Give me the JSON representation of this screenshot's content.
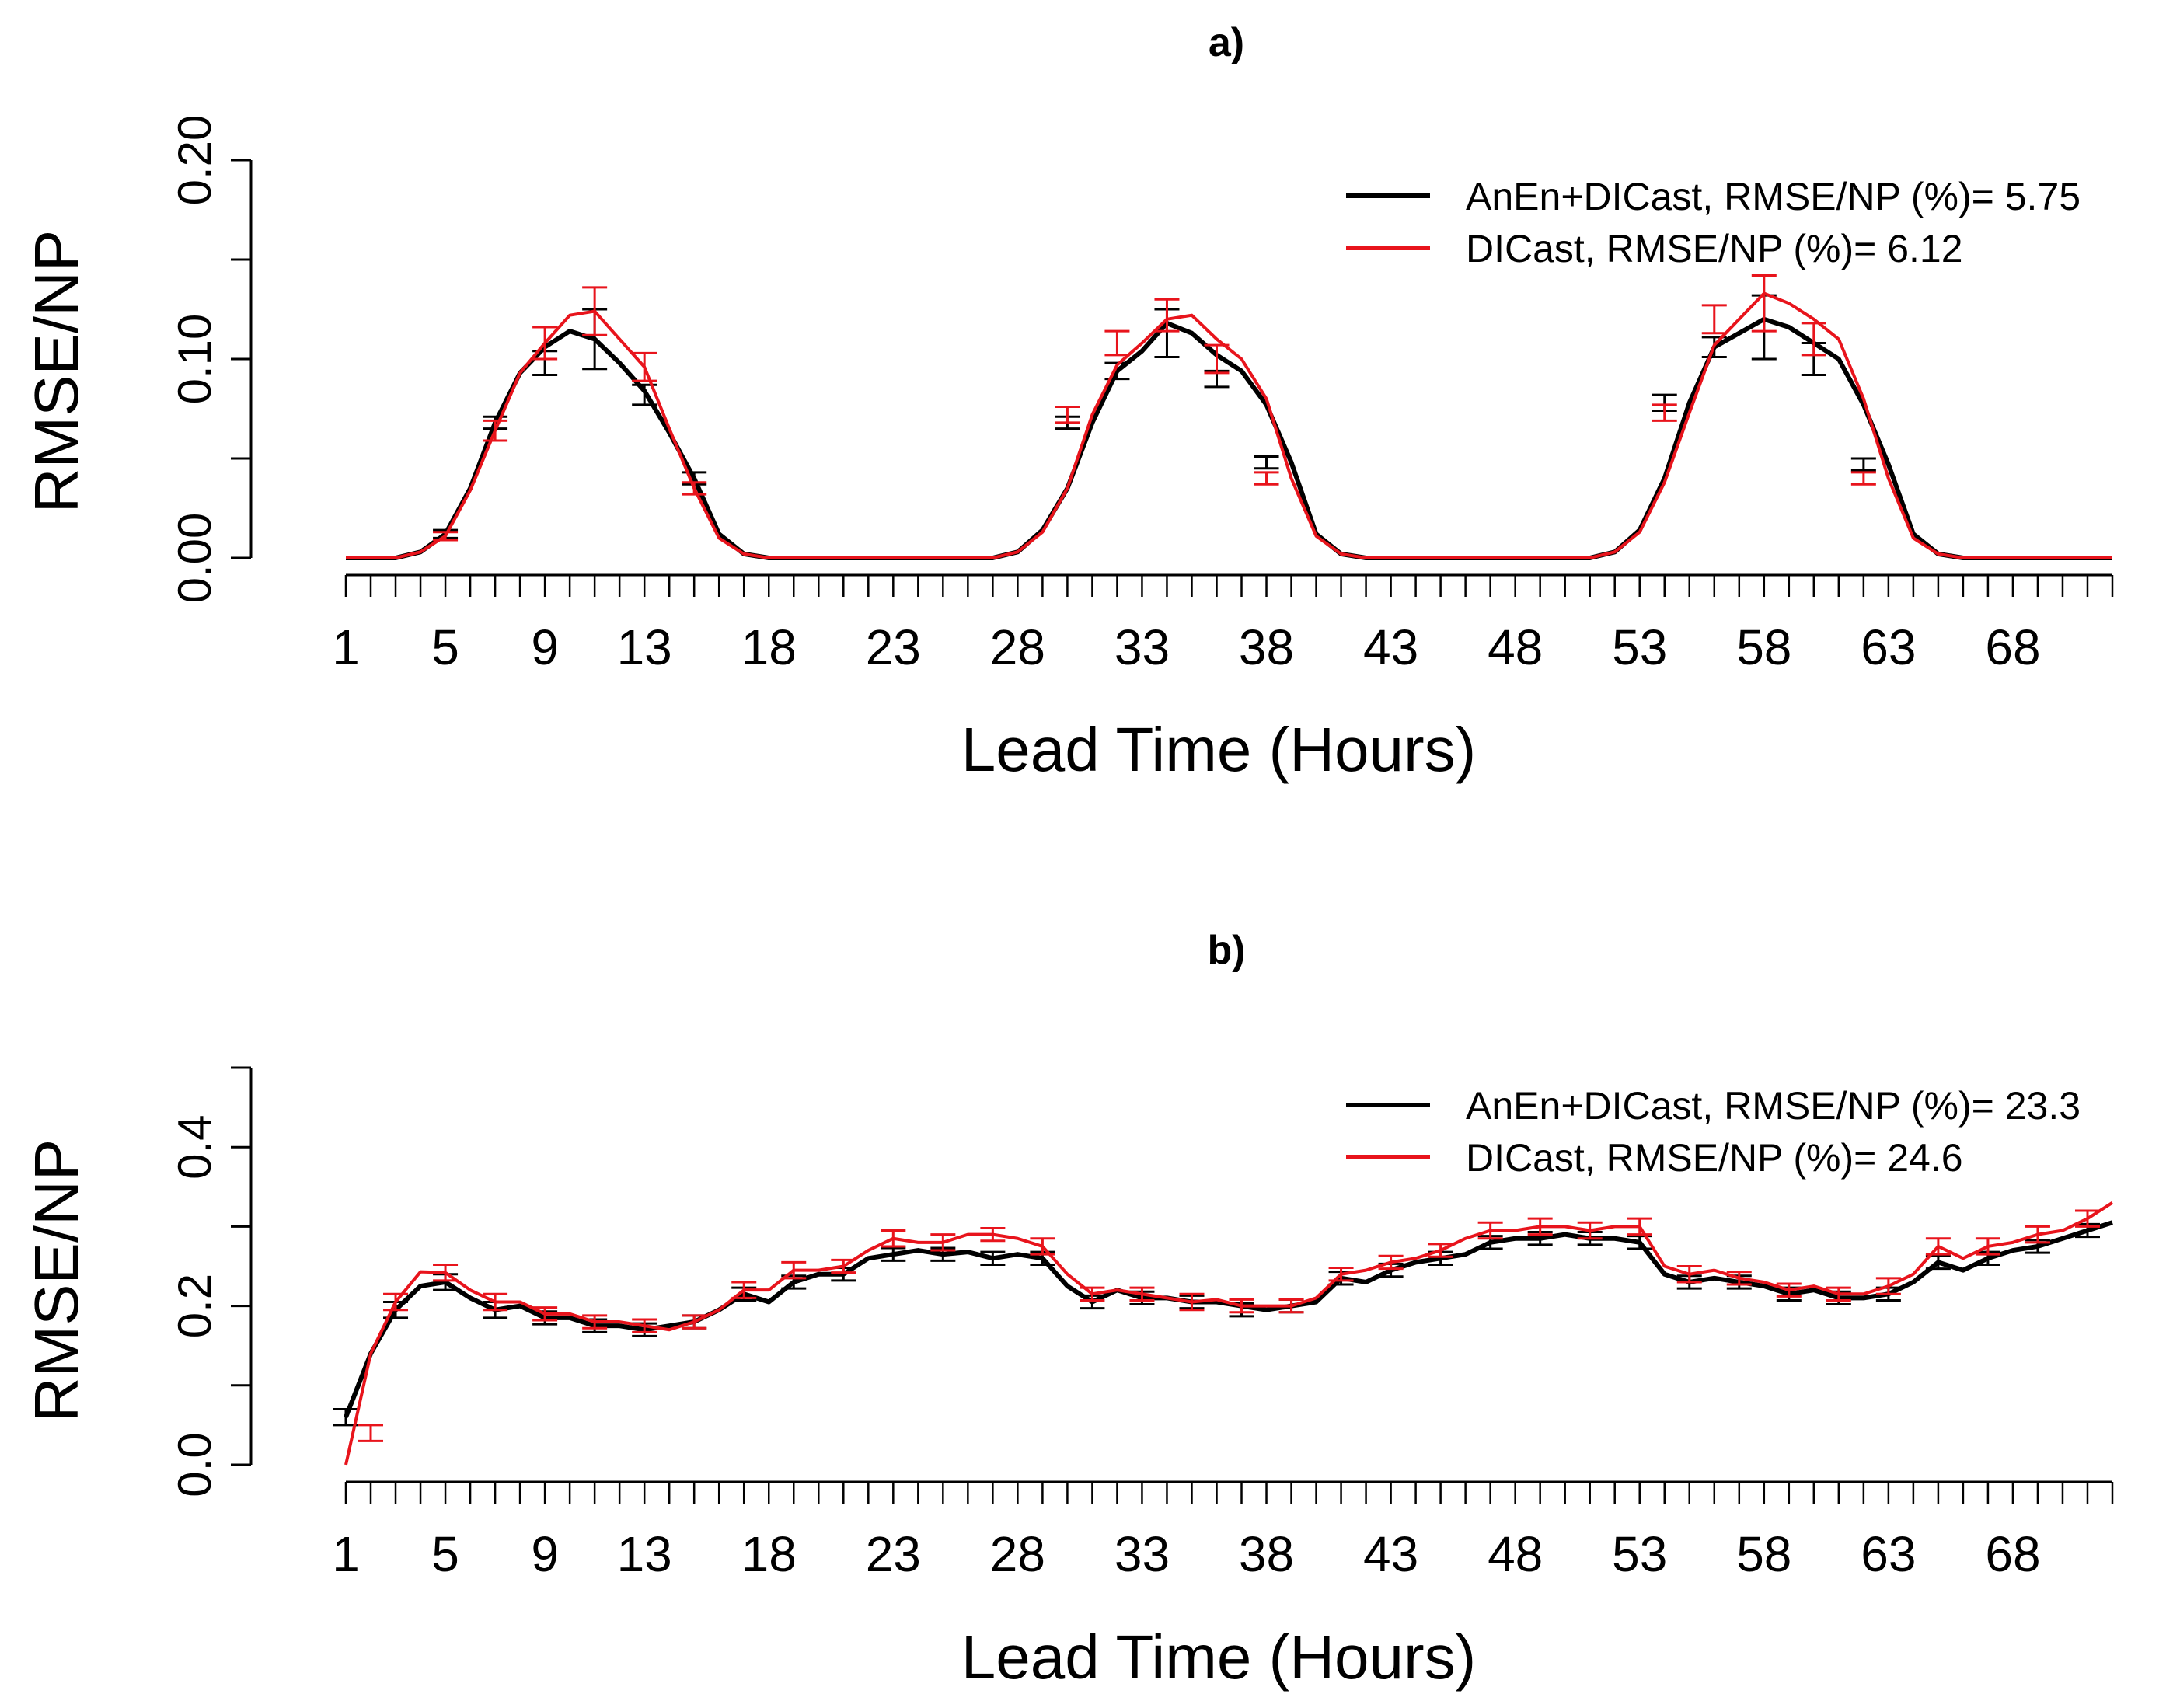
{
  "chart_data": [
    {
      "panel_label": "a)",
      "type": "line",
      "xlabel": "Lead Time (Hours)",
      "ylabel": "RMSE/NP",
      "x_tick_labels": [
        "1",
        "5",
        "9",
        "13",
        "18",
        "23",
        "28",
        "33",
        "38",
        "43",
        "48",
        "53",
        "58",
        "63",
        "68"
      ],
      "x_tick_positions": [
        1,
        5,
        9,
        13,
        18,
        23,
        28,
        33,
        38,
        43,
        48,
        53,
        58,
        63,
        68
      ],
      "x_minor_ticks": [
        1,
        72
      ],
      "y_ticks": [
        0.0,
        0.05,
        0.1,
        0.15,
        0.2
      ],
      "y_tick_labels": [
        "0.00",
        "",
        "0.10",
        "",
        "0.20"
      ],
      "ylim": [
        0,
        0.2
      ],
      "xlim": [
        1,
        72
      ],
      "legend_position": "top-right",
      "series": [
        {
          "name": "AnEn+DICast,  RMSE/NP (%)= 5.75",
          "color": "#000000",
          "values": [
            0,
            0,
            0,
            0.003,
            0.012,
            0.035,
            0.068,
            0.093,
            0.106,
            0.114,
            0.11,
            0.098,
            0.084,
            0.063,
            0.04,
            0.012,
            0.002,
            0,
            0,
            0,
            0,
            0,
            0,
            0,
            0,
            0,
            0,
            0.003,
            0.014,
            0.035,
            0.068,
            0.094,
            0.104,
            0.118,
            0.113,
            0.102,
            0.094,
            0.077,
            0.048,
            0.012,
            0.002,
            0,
            0,
            0,
            0,
            0,
            0,
            0,
            0,
            0,
            0,
            0.003,
            0.014,
            0.04,
            0.078,
            0.106,
            0.113,
            0.12,
            0.116,
            0.108,
            0.1,
            0.077,
            0.047,
            0.012,
            0.002,
            0,
            0,
            0,
            0,
            0,
            0,
            0
          ],
          "error_bars": [
            [
              5,
              0.012,
              0.002
            ],
            [
              7,
              0.068,
              0.003
            ],
            [
              9,
              0.098,
              0.006
            ],
            [
              11,
              0.11,
              0.015
            ],
            [
              13,
              0.082,
              0.005
            ],
            [
              15,
              0.04,
              0.003
            ],
            [
              30,
              0.068,
              0.003
            ],
            [
              32,
              0.094,
              0.004
            ],
            [
              34,
              0.113,
              0.012
            ],
            [
              36,
              0.09,
              0.004
            ],
            [
              38,
              0.048,
              0.003
            ],
            [
              54,
              0.078,
              0.004
            ],
            [
              56,
              0.106,
              0.005
            ],
            [
              58,
              0.116,
              0.016
            ],
            [
              60,
              0.1,
              0.008
            ],
            [
              62,
              0.047,
              0.003
            ]
          ]
        },
        {
          "name": "DICast,  RMSE/NP (%)= 6.12",
          "color": "#e8141c",
          "values": [
            0,
            0,
            0,
            0.003,
            0.011,
            0.034,
            0.064,
            0.093,
            0.108,
            0.122,
            0.124,
            0.11,
            0.096,
            0.065,
            0.035,
            0.01,
            0.002,
            0,
            0,
            0,
            0,
            0,
            0,
            0,
            0,
            0,
            0,
            0.003,
            0.013,
            0.035,
            0.072,
            0.097,
            0.108,
            0.12,
            0.122,
            0.11,
            0.1,
            0.08,
            0.04,
            0.011,
            0.002,
            0,
            0,
            0,
            0,
            0,
            0,
            0,
            0,
            0,
            0,
            0.003,
            0.013,
            0.038,
            0.073,
            0.107,
            0.12,
            0.133,
            0.128,
            0.12,
            0.11,
            0.08,
            0.04,
            0.01,
            0.002,
            0,
            0,
            0,
            0,
            0,
            0,
            0
          ],
          "error_bars": [
            [
              5,
              0.011,
              0.002
            ],
            [
              7,
              0.064,
              0.005
            ],
            [
              9,
              0.108,
              0.008
            ],
            [
              11,
              0.124,
              0.012
            ],
            [
              13,
              0.096,
              0.007
            ],
            [
              15,
              0.035,
              0.003
            ],
            [
              30,
              0.072,
              0.004
            ],
            [
              32,
              0.108,
              0.006
            ],
            [
              34,
              0.122,
              0.008
            ],
            [
              36,
              0.1,
              0.007
            ],
            [
              38,
              0.04,
              0.003
            ],
            [
              54,
              0.073,
              0.004
            ],
            [
              56,
              0.12,
              0.007
            ],
            [
              58,
              0.128,
              0.014
            ],
            [
              60,
              0.11,
              0.008
            ],
            [
              62,
              0.04,
              0.003
            ]
          ]
        }
      ]
    },
    {
      "panel_label": "b)",
      "type": "line",
      "xlabel": "Lead Time (Hours)",
      "ylabel": "RMSE/NP",
      "x_tick_labels": [
        "1",
        "5",
        "9",
        "13",
        "18",
        "23",
        "28",
        "33",
        "38",
        "43",
        "48",
        "53",
        "58",
        "63",
        "68"
      ],
      "x_tick_positions": [
        1,
        5,
        9,
        13,
        18,
        23,
        28,
        33,
        38,
        43,
        48,
        53,
        58,
        63,
        68
      ],
      "y_ticks": [
        0.0,
        0.1,
        0.2,
        0.3,
        0.4,
        0.5
      ],
      "y_tick_labels": [
        "0.0",
        "",
        "0.2",
        "",
        "0.4",
        ""
      ],
      "ylim": [
        0,
        0.5
      ],
      "xlim": [
        1,
        72
      ],
      "legend_position": "top-right",
      "series": [
        {
          "name": "AnEn+DICast,  RMSE/NP (%)= 23.3",
          "color": "#000000",
          "values": [
            0.06,
            0.14,
            0.195,
            0.225,
            0.23,
            0.21,
            0.195,
            0.2,
            0.185,
            0.185,
            0.175,
            0.175,
            0.17,
            0.175,
            0.18,
            0.195,
            0.215,
            0.205,
            0.23,
            0.24,
            0.24,
            0.26,
            0.265,
            0.27,
            0.265,
            0.268,
            0.26,
            0.265,
            0.26,
            0.225,
            0.205,
            0.22,
            0.21,
            0.21,
            0.205,
            0.205,
            0.2,
            0.195,
            0.2,
            0.205,
            0.235,
            0.23,
            0.245,
            0.255,
            0.26,
            0.265,
            0.28,
            0.285,
            0.285,
            0.29,
            0.285,
            0.285,
            0.28,
            0.24,
            0.23,
            0.235,
            0.23,
            0.225,
            0.215,
            0.22,
            0.21,
            0.21,
            0.215,
            0.23,
            0.255,
            0.245,
            0.26,
            0.27,
            0.275,
            0.285,
            0.295,
            0.305
          ],
          "error_bars": [
            [
              1,
              0.06,
              0.01
            ],
            [
              3,
              0.195,
              0.01
            ],
            [
              5,
              0.23,
              0.01
            ],
            [
              7,
              0.195,
              0.01
            ],
            [
              9,
              0.185,
              0.008
            ],
            [
              11,
              0.175,
              0.008
            ],
            [
              13,
              0.17,
              0.008
            ],
            [
              15,
              0.18,
              0.008
            ],
            [
              17,
              0.215,
              0.008
            ],
            [
              19,
              0.23,
              0.008
            ],
            [
              21,
              0.24,
              0.008
            ],
            [
              23,
              0.265,
              0.008
            ],
            [
              25,
              0.265,
              0.008
            ],
            [
              27,
              0.26,
              0.008
            ],
            [
              29,
              0.26,
              0.008
            ],
            [
              31,
              0.205,
              0.008
            ],
            [
              33,
              0.21,
              0.008
            ],
            [
              35,
              0.205,
              0.008
            ],
            [
              37,
              0.195,
              0.008
            ],
            [
              39,
              0.2,
              0.008
            ],
            [
              41,
              0.235,
              0.008
            ],
            [
              43,
              0.245,
              0.008
            ],
            [
              45,
              0.26,
              0.008
            ],
            [
              47,
              0.28,
              0.008
            ],
            [
              49,
              0.285,
              0.008
            ],
            [
              51,
              0.285,
              0.008
            ],
            [
              53,
              0.28,
              0.008
            ],
            [
              55,
              0.23,
              0.008
            ],
            [
              57,
              0.23,
              0.008
            ],
            [
              59,
              0.215,
              0.008
            ],
            [
              61,
              0.21,
              0.008
            ],
            [
              63,
              0.215,
              0.008
            ],
            [
              65,
              0.255,
              0.008
            ],
            [
              67,
              0.26,
              0.008
            ],
            [
              69,
              0.275,
              0.008
            ],
            [
              71,
              0.295,
              0.008
            ]
          ]
        },
        {
          "name": "DICast,  RMSE/NP (%)= 24.6",
          "color": "#e8141c",
          "values": [
            0.0,
            0.14,
            0.205,
            0.243,
            0.242,
            0.22,
            0.205,
            0.205,
            0.19,
            0.19,
            0.18,
            0.18,
            0.175,
            0.17,
            0.18,
            0.195,
            0.22,
            0.22,
            0.245,
            0.245,
            0.25,
            0.27,
            0.285,
            0.28,
            0.28,
            0.29,
            0.29,
            0.285,
            0.275,
            0.24,
            0.215,
            0.22,
            0.215,
            0.21,
            0.205,
            0.208,
            0.2,
            0.2,
            0.2,
            0.21,
            0.24,
            0.245,
            0.255,
            0.26,
            0.27,
            0.285,
            0.295,
            0.295,
            0.3,
            0.3,
            0.295,
            0.3,
            0.3,
            0.25,
            0.24,
            0.245,
            0.235,
            0.23,
            0.22,
            0.225,
            0.215,
            0.215,
            0.225,
            0.24,
            0.275,
            0.26,
            0.275,
            0.28,
            0.29,
            0.295,
            0.31,
            0.33
          ],
          "error_bars": [
            [
              2,
              0.04,
              0.01
            ],
            [
              3,
              0.205,
              0.01
            ],
            [
              5,
              0.242,
              0.01
            ],
            [
              7,
              0.205,
              0.01
            ],
            [
              9,
              0.19,
              0.008
            ],
            [
              11,
              0.18,
              0.008
            ],
            [
              13,
              0.175,
              0.008
            ],
            [
              15,
              0.18,
              0.008
            ],
            [
              17,
              0.22,
              0.01
            ],
            [
              19,
              0.245,
              0.01
            ],
            [
              21,
              0.25,
              0.008
            ],
            [
              23,
              0.285,
              0.01
            ],
            [
              25,
              0.28,
              0.01
            ],
            [
              27,
              0.29,
              0.008
            ],
            [
              29,
              0.275,
              0.01
            ],
            [
              31,
              0.215,
              0.008
            ],
            [
              33,
              0.215,
              0.008
            ],
            [
              35,
              0.205,
              0.01
            ],
            [
              37,
              0.2,
              0.008
            ],
            [
              39,
              0.2,
              0.008
            ],
            [
              41,
              0.24,
              0.008
            ],
            [
              43,
              0.255,
              0.008
            ],
            [
              45,
              0.27,
              0.008
            ],
            [
              47,
              0.295,
              0.01
            ],
            [
              49,
              0.3,
              0.01
            ],
            [
              51,
              0.295,
              0.01
            ],
            [
              53,
              0.3,
              0.01
            ],
            [
              55,
              0.24,
              0.01
            ],
            [
              57,
              0.235,
              0.008
            ],
            [
              59,
              0.22,
              0.008
            ],
            [
              61,
              0.215,
              0.008
            ],
            [
              63,
              0.225,
              0.01
            ],
            [
              65,
              0.275,
              0.01
            ],
            [
              67,
              0.275,
              0.01
            ],
            [
              69,
              0.29,
              0.01
            ],
            [
              71,
              0.31,
              0.01
            ]
          ]
        }
      ]
    }
  ]
}
